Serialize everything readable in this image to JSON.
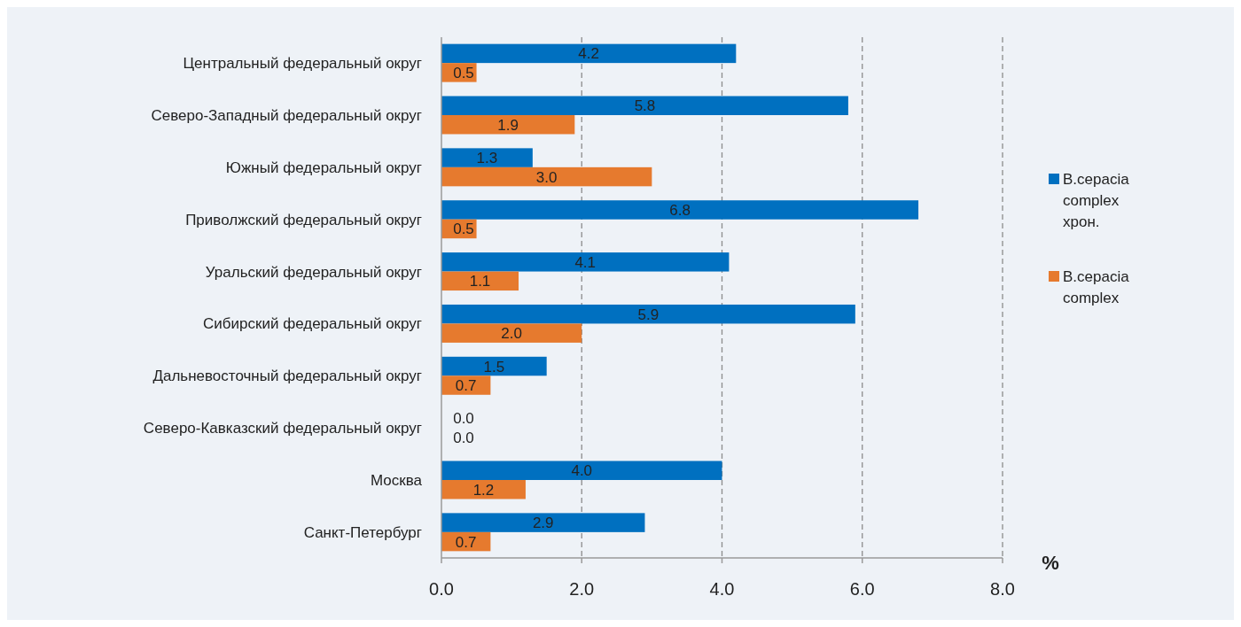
{
  "chart_data": {
    "type": "bar",
    "orientation": "horizontal",
    "xlabel": "%",
    "categories": [
      "Центральный федеральный округ",
      "Северо-Западный федеральный округ",
      "Южный федеральный округ",
      "Приволжский федеральный округ",
      "Уральский федеральный округ",
      "Сибирский федеральный округ",
      "Дальневосточный федеральный округ",
      "Северо-Кавказский федеральный округ",
      "Москва",
      "Санкт-Петербург"
    ],
    "series": [
      {
        "name": "B.cepacia complex хрон.",
        "color": "#0070c0",
        "values": [
          4.2,
          5.8,
          1.3,
          6.8,
          4.1,
          5.9,
          1.5,
          0.0,
          4.0,
          2.9
        ],
        "value_labels": [
          "4.2",
          "5.8",
          "1.3",
          "6.8",
          "4.1",
          "5.9",
          "1.5",
          "0.0",
          "4.0",
          "2.9"
        ]
      },
      {
        "name": "B.cepacia complex",
        "color": "#e67a2e",
        "values": [
          0.5,
          1.9,
          3.0,
          0.5,
          1.1,
          2.0,
          0.7,
          0.0,
          1.2,
          0.7
        ],
        "value_labels": [
          "0.5",
          "1.9",
          "3.0",
          "0.5",
          "1.1",
          "2.0",
          "0.7",
          "0.0",
          "1.2",
          "0.7"
        ]
      }
    ],
    "xlim": [
      0,
      8
    ],
    "xticks": [
      {
        "value": 0,
        "label": "0.0"
      },
      {
        "value": 2,
        "label": "2.0"
      },
      {
        "value": 4,
        "label": "4.0"
      },
      {
        "value": 6,
        "label": "6.0"
      },
      {
        "value": 8,
        "label": "8.0"
      }
    ],
    "grid": "x",
    "legend": "right"
  }
}
